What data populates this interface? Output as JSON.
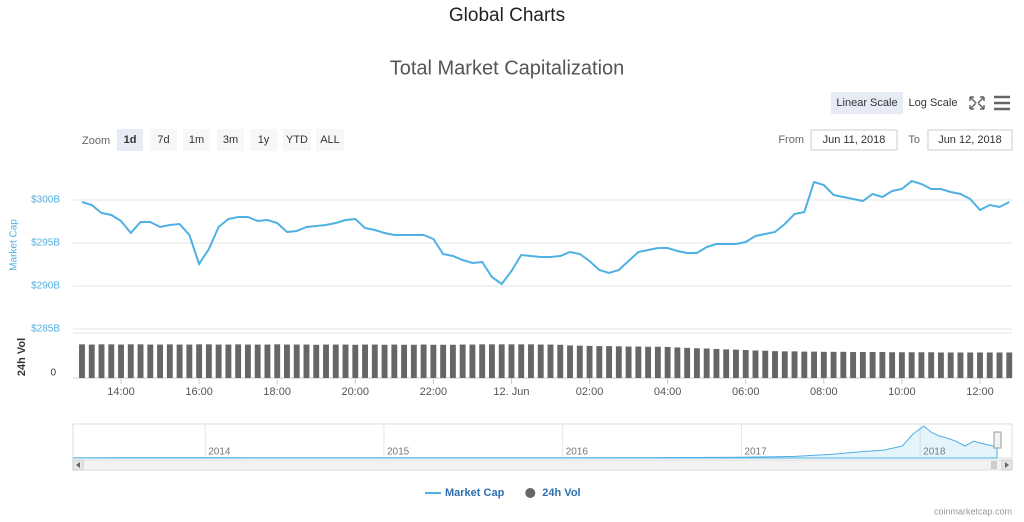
{
  "header": {
    "title": "Global Charts"
  },
  "controls": {
    "scales": [
      "Linear Scale",
      "Log Scale"
    ],
    "zoom_label": "Zoom",
    "zoom_buttons": [
      "1d",
      "7d",
      "1m",
      "3m",
      "1y",
      "YTD",
      "ALL"
    ],
    "from_label": "From",
    "from": "Jun 11, 2018",
    "to_label": "To",
    "to": "Jun 12, 2018"
  },
  "chart_data": [
    {
      "type": "line",
      "title": "Total Market Capitalization",
      "y_label": "Market Cap",
      "y2_label": "24h Vol",
      "x": [
        13,
        13.25,
        13.5,
        13.75,
        14,
        14.25,
        14.5,
        14.75,
        15,
        15.25,
        15.5,
        15.75,
        16,
        16.25,
        16.5,
        16.75,
        17,
        17.25,
        17.5,
        17.75,
        18,
        18.25,
        18.5,
        18.75,
        19,
        19.25,
        19.5,
        19.75,
        20,
        20.25,
        20.5,
        20.75,
        21,
        21.25,
        21.5,
        21.75,
        22,
        22.25,
        22.5,
        22.75,
        23,
        23.25,
        23.5,
        23.75,
        24,
        24.25,
        24.5,
        24.75,
        25,
        25.25,
        25.5,
        25.75,
        26,
        26.25,
        26.5,
        26.75,
        27,
        27.25,
        27.5,
        27.75,
        28,
        28.25,
        28.5,
        28.75,
        29,
        29.25,
        29.5,
        29.75,
        30,
        30.25,
        30.5,
        30.75,
        31,
        31.25,
        31.5,
        31.75,
        32,
        32.25,
        32.5,
        32.75,
        33,
        33.25,
        33.5,
        33.75,
        34,
        34.25,
        34.5,
        34.75,
        35,
        35.25,
        35.5,
        35.75,
        36,
        36.25,
        36.5,
        36.75
      ],
      "series": [
        {
          "name": "Market Cap",
          "color": "#4fb0e3",
          "values": [
            299.77,
            299.42,
            298.49,
            298.26,
            297.56,
            296.16,
            297.44,
            297.44,
            296.86,
            297.09,
            297.21,
            295.93,
            292.56,
            294.3,
            296.86,
            297.79,
            298.02,
            298.02,
            297.56,
            297.67,
            297.33,
            296.28,
            296.4,
            296.86,
            296.98,
            297.09,
            297.33,
            297.67,
            297.79,
            296.74,
            296.51,
            296.16,
            295.93,
            295.93,
            295.93,
            295.93,
            295.47,
            293.72,
            293.49,
            293.02,
            292.67,
            292.79,
            291.05,
            290.23,
            291.74,
            293.6,
            293.49,
            293.37,
            293.37,
            293.49,
            293.95,
            293.72,
            292.91,
            291.86,
            291.51,
            291.86,
            292.91,
            293.95,
            294.19,
            294.42,
            294.42,
            294.07,
            293.84,
            293.84,
            294.53,
            294.88,
            294.88,
            294.88,
            295.12,
            295.81,
            296.05,
            296.28,
            297.21,
            298.37,
            298.6,
            302.09,
            301.74,
            300.58,
            300.35,
            300.12,
            299.88,
            300.7,
            300.35,
            301.05,
            301.28,
            302.21,
            301.86,
            301.28,
            301.28,
            300.93,
            300.7,
            300.12,
            298.84,
            299.42,
            299.19,
            299.77
          ]
        },
        {
          "name": "24h Vol",
          "color": "#666666",
          "axis": "y2",
          "values": [
            15.3,
            15.2,
            15.3,
            15.3,
            15.2,
            15.3,
            15.3,
            15.2,
            15.2,
            15.3,
            15.2,
            15.2,
            15.3,
            15.3,
            15.2,
            15.2,
            15.3,
            15.2,
            15.2,
            15.2,
            15.3,
            15.2,
            15.2,
            15.2,
            15.1,
            15.2,
            15.2,
            15.2,
            15.1,
            15.2,
            15.2,
            15.1,
            15.2,
            15.1,
            15.1,
            15.2,
            15.1,
            15.1,
            15.1,
            15.2,
            15.2,
            15.3,
            15.3,
            15.3,
            15.3,
            15.3,
            15.3,
            15.2,
            15.2,
            15.1,
            14.8,
            14.7,
            14.6,
            14.5,
            14.5,
            14.4,
            14.3,
            14.3,
            14.2,
            14.2,
            14.1,
            13.9,
            13.7,
            13.5,
            13.4,
            13.2,
            13,
            12.9,
            12.7,
            12.5,
            12.4,
            12.2,
            12.1,
            12.1,
            12,
            12,
            11.9,
            11.9,
            11.9,
            11.8,
            11.8,
            11.8,
            11.8,
            11.7,
            11.7,
            11.7,
            11.7,
            11.7,
            11.6,
            11.6,
            11.6,
            11.6,
            11.6,
            11.6,
            11.6,
            11.6
          ]
        }
      ],
      "xlim": [
        12.77,
        36.82
      ],
      "xticks": [
        {
          "value": 14,
          "label": "14:00"
        },
        {
          "value": 16,
          "label": "16:00"
        },
        {
          "value": 18,
          "label": "18:00"
        },
        {
          "value": 20,
          "label": "20:00"
        },
        {
          "value": 22,
          "label": "22:00"
        },
        {
          "value": 24,
          "label": "12. Jun"
        },
        {
          "value": 26,
          "label": "02:00"
        },
        {
          "value": 28,
          "label": "04:00"
        },
        {
          "value": 30,
          "label": "06:00"
        },
        {
          "value": 32,
          "label": "08:00"
        },
        {
          "value": 34,
          "label": "10:00"
        },
        {
          "value": 36,
          "label": "12:00"
        }
      ],
      "ylim": [
        285,
        305
      ],
      "yticks": [
        {
          "value": 285,
          "label": "$285B"
        },
        {
          "value": 290,
          "label": "$290B"
        },
        {
          "value": 295,
          "label": "$295B"
        },
        {
          "value": 300,
          "label": "$300B"
        }
      ],
      "y2lim": [
        0,
        20
      ],
      "y2ticks": [
        0
      ],
      "grid": true,
      "legend": "bottom"
    },
    {
      "type": "area",
      "color": "#4fb0e3",
      "x": [
        2013.26,
        2013.6,
        2014,
        2014.5,
        2015,
        2015.5,
        2016,
        2016.5,
        2017,
        2017.3,
        2017.5,
        2017.65,
        2017.8,
        2017.9,
        2017.96,
        2018.02,
        2018.06,
        2018.1,
        2018.15,
        2018.2,
        2018.25,
        2018.3,
        2018.35,
        2018.4,
        2018.43
      ],
      "values": [
        1.5,
        10,
        10,
        6,
        4,
        5,
        7,
        11,
        18,
        40,
        90,
        150,
        200,
        300,
        600,
        800,
        650,
        560,
        500,
        420,
        300,
        420,
        360,
        310,
        280
      ],
      "xlim": [
        2013.26,
        2018.43
      ],
      "xticks": [
        2014,
        2015,
        2016,
        2017,
        2018
      ],
      "ylim": [
        0,
        850
      ]
    }
  ],
  "credit": "coinmarketcap.com"
}
